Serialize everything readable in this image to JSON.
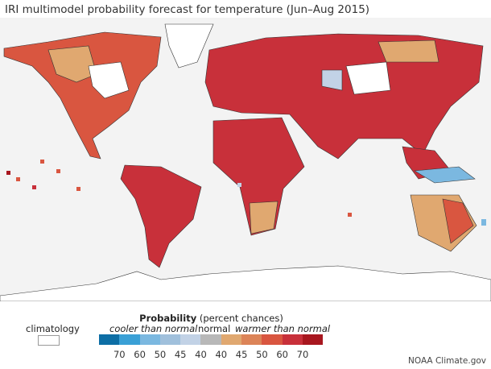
{
  "title": "IRI multimodel probability forecast for temperature (Jun–Aug 2015)",
  "legend": {
    "heading_bold": "Probability",
    "heading_rest": "(percent chances)",
    "climatology_label": "climatology",
    "cooler_label": "cooler than normal",
    "normal_label": "normal",
    "warmer_label": "warmer than normal",
    "colors": [
      "#0d6ea5",
      "#3aa0d6",
      "#7bb8e0",
      "#a0c0dc",
      "#c2d2e6",
      "#b8b8b8",
      "#e0a870",
      "#dc8458",
      "#d95640",
      "#c8303a",
      "#a8171f"
    ],
    "ticks": [
      "70",
      "60",
      "50",
      "45",
      "40",
      "40",
      "45",
      "50",
      "60",
      "70"
    ]
  },
  "credit": "NOAA Climate.gov",
  "map_colors": {
    "background": "#f3f3f3",
    "climatology": "#ffffff",
    "border": "#333333"
  }
}
